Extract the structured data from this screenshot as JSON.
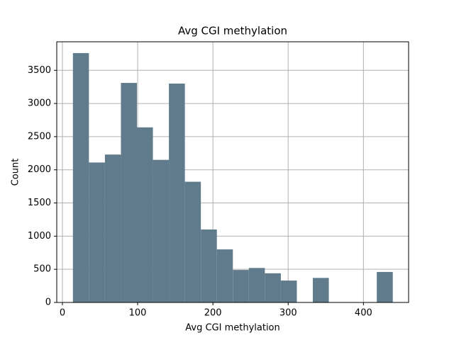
{
  "chart_data": {
    "type": "histogram",
    "title": "Avg CGI methylation",
    "x_label": "Avg CGI methylation",
    "y_label": "Count",
    "bins": [
      14,
      35.25,
      56.5,
      77.75,
      99,
      120.25,
      141.5,
      162.75,
      184,
      205.25,
      226.5,
      247.75,
      269,
      290.25,
      311.5,
      332.75,
      354,
      375.25,
      396.5,
      417.75,
      439
    ],
    "values": [
      3760,
      2110,
      2230,
      3310,
      2640,
      2150,
      3300,
      1820,
      1100,
      800,
      490,
      520,
      440,
      330,
      0,
      370,
      0,
      0,
      0,
      460
    ],
    "color": "#607b8b",
    "xlim": [
      -7.5,
      460
    ],
    "xticks": [
      0,
      100,
      200,
      300,
      400
    ],
    "ylim": [
      0,
      3930
    ],
    "yticks": [
      0,
      500,
      1000,
      1500,
      2000,
      2500,
      3000,
      3500
    ],
    "grid": true
  }
}
